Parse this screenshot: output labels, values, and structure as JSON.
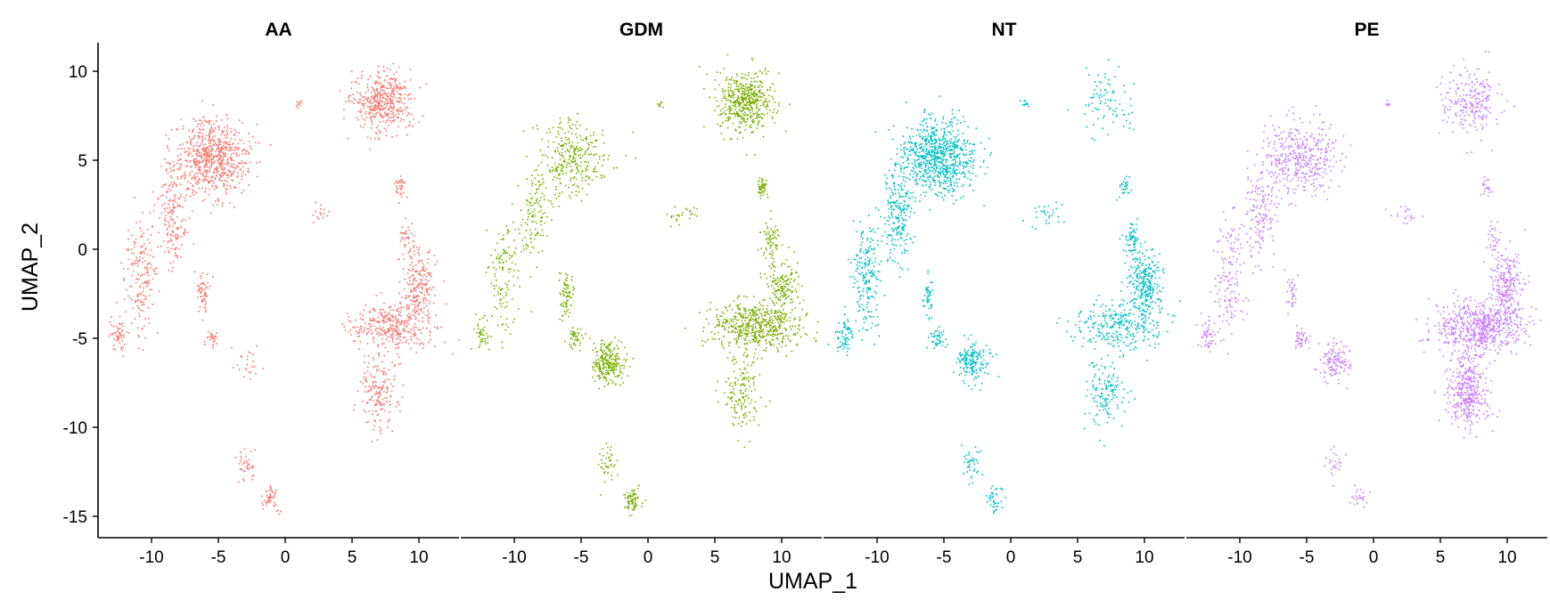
{
  "chart_data": {
    "type": "scatter",
    "facets": [
      "AA",
      "GDM",
      "NT",
      "PE"
    ],
    "colors": {
      "AA": "#F8766D",
      "GDM": "#7CAE00",
      "NT": "#00BFC4",
      "PE": "#C77CFF"
    },
    "xlabel": "UMAP_1",
    "ylabel": "UMAP_2",
    "xlim": [
      -14,
      13
    ],
    "ylim": [
      -16.2,
      11.6
    ],
    "xticks": [
      -10,
      -5,
      0,
      5,
      10
    ],
    "xtick_labels": [
      "-10",
      "-5",
      "0",
      "5",
      "10"
    ],
    "yticks": [
      10,
      5,
      0,
      -5,
      -10,
      -15
    ],
    "ytick_labels": [
      "10",
      "5",
      "0",
      "-5",
      "-10",
      "-15"
    ],
    "grid": false,
    "legend": "none",
    "clusters": [
      {
        "cx": -5.5,
        "cy": 5.2,
        "sx": 2.2,
        "sy": 1.7,
        "w": {
          "AA": 1.4,
          "GDM": 0.7,
          "NT": 1.4,
          "PE": 1.0
        }
      },
      {
        "cx": -8.5,
        "cy": 2.0,
        "sx": 0.9,
        "sy": 2.2,
        "w": {
          "AA": 0.35,
          "GDM": 0.3,
          "NT": 0.4,
          "PE": 0.35
        }
      },
      {
        "cx": -10.8,
        "cy": -1.5,
        "sx": 0.9,
        "sy": 2.5,
        "w": {
          "AA": 0.35,
          "GDM": 0.3,
          "NT": 0.35,
          "PE": 0.35
        }
      },
      {
        "cx": -12.5,
        "cy": -4.8,
        "sx": 0.5,
        "sy": 0.8,
        "w": {
          "AA": 0.12,
          "GDM": 0.1,
          "NT": 0.12,
          "PE": 0.12
        }
      },
      {
        "cx": -6.2,
        "cy": -2.5,
        "sx": 0.35,
        "sy": 1.0,
        "w": {
          "AA": 0.12,
          "GDM": 0.18,
          "NT": 0.08,
          "PE": 0.08
        }
      },
      {
        "cx": -5.5,
        "cy": -5.0,
        "sx": 0.5,
        "sy": 0.5,
        "w": {
          "AA": 0.06,
          "GDM": 0.12,
          "NT": 0.08,
          "PE": 0.1
        }
      },
      {
        "cx": -3.0,
        "cy": -6.3,
        "sx": 1.0,
        "sy": 0.9,
        "w": {
          "AA": 0.05,
          "GDM": 0.6,
          "NT": 0.3,
          "PE": 0.3
        }
      },
      {
        "cx": -1.2,
        "cy": -14.0,
        "sx": 0.5,
        "sy": 0.6,
        "w": {
          "AA": 0.1,
          "GDM": 0.18,
          "NT": 0.07,
          "PE": 0.06
        }
      },
      {
        "cx": -3.0,
        "cy": -12.0,
        "sx": 0.6,
        "sy": 0.8,
        "w": {
          "AA": 0.08,
          "GDM": 0.1,
          "NT": 0.07,
          "PE": 0.06
        }
      },
      {
        "cx": 7.2,
        "cy": 8.3,
        "sx": 1.7,
        "sy": 1.4,
        "w": {
          "AA": 0.9,
          "GDM": 1.2,
          "NT": 0.15,
          "PE": 0.55
        }
      },
      {
        "cx": 8.5,
        "cy": 3.5,
        "sx": 0.4,
        "sy": 0.5,
        "w": {
          "AA": 0.07,
          "GDM": 0.12,
          "NT": 0.05,
          "PE": 0.05
        }
      },
      {
        "cx": 8.0,
        "cy": -4.3,
        "sx": 2.6,
        "sy": 1.1,
        "w": {
          "AA": 0.7,
          "GDM": 1.3,
          "NT": 0.5,
          "PE": 1.5
        }
      },
      {
        "cx": 10.0,
        "cy": -2.0,
        "sx": 1.0,
        "sy": 1.6,
        "w": {
          "AA": 0.4,
          "GDM": 0.4,
          "NT": 0.5,
          "PE": 0.6
        }
      },
      {
        "cx": 7.0,
        "cy": -8.0,
        "sx": 1.2,
        "sy": 1.6,
        "w": {
          "AA": 0.35,
          "GDM": 0.35,
          "NT": 0.25,
          "PE": 0.9
        }
      },
      {
        "cx": 9.0,
        "cy": 0.5,
        "sx": 0.5,
        "sy": 0.9,
        "w": {
          "AA": 0.08,
          "GDM": 0.15,
          "NT": 0.12,
          "PE": 0.08
        }
      },
      {
        "cx": 2.5,
        "cy": 2.0,
        "sx": 1.0,
        "sy": 0.5,
        "w": {
          "AA": 0.03,
          "GDM": 0.06,
          "NT": 0.05,
          "PE": 0.05
        }
      },
      {
        "cx": 1.0,
        "cy": 8.2,
        "sx": 0.3,
        "sy": 0.2,
        "w": {
          "AA": 0.02,
          "GDM": 0.02,
          "NT": 0.02,
          "PE": 0.02
        }
      }
    ]
  }
}
